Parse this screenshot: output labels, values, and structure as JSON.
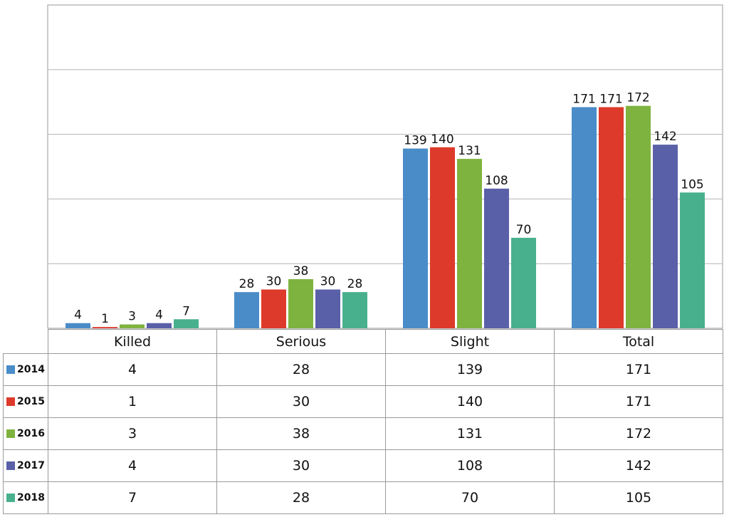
{
  "chart_data": {
    "type": "bar",
    "categories": [
      "Killed",
      "Serious",
      "Slight",
      "Total"
    ],
    "series": [
      {
        "name": "2014",
        "values": [
          4,
          28,
          139,
          171
        ],
        "color": "#4a8cc8"
      },
      {
        "name": "2015",
        "values": [
          1,
          30,
          140,
          171
        ],
        "color": "#dd3a2b"
      },
      {
        "name": "2016",
        "values": [
          3,
          38,
          131,
          172
        ],
        "color": "#7fb33f"
      },
      {
        "name": "2017",
        "values": [
          4,
          30,
          108,
          142
        ],
        "color": "#5a60a8"
      },
      {
        "name": "2018",
        "values": [
          7,
          28,
          70,
          105
        ],
        "color": "#49b08e"
      }
    ],
    "ylim": [
      0,
      250
    ],
    "grid": true,
    "legend": "data-table",
    "value_labels": [
      "4",
      "1",
      "3",
      "4",
      "7",
      "28",
      "30",
      "38",
      "30",
      "28",
      "139",
      "140",
      "131",
      "108",
      "70",
      "171",
      "171",
      "172",
      "142",
      "105"
    ]
  }
}
